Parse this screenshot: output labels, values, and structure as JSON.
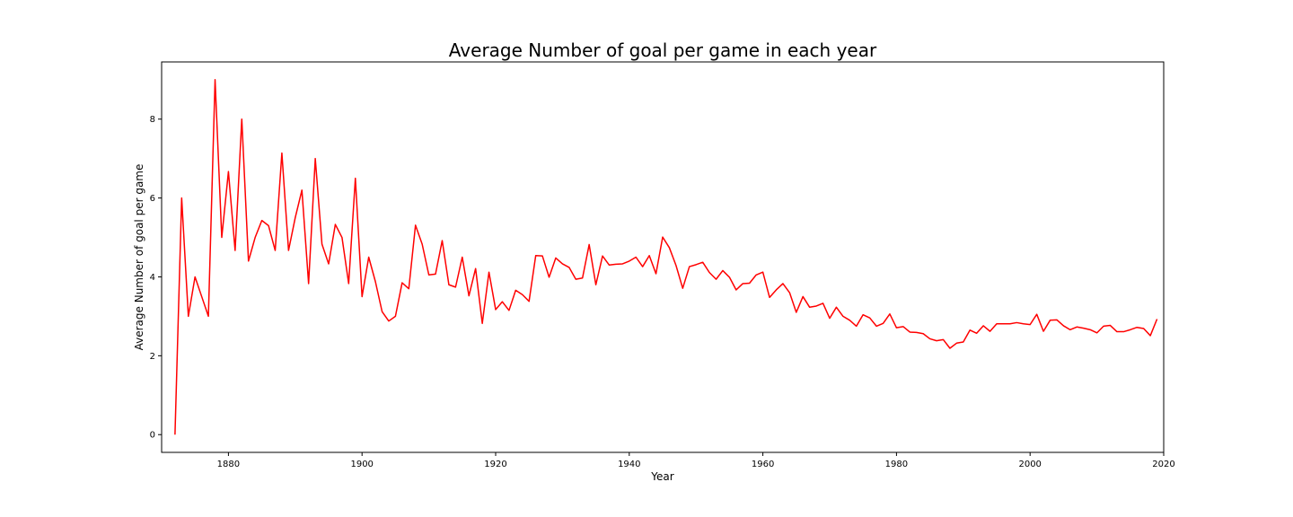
{
  "chart_data": {
    "type": "line",
    "title": "Average Number of goal per game  in each year",
    "xlabel": "Year",
    "ylabel": "Average Number of goal per game",
    "xlim": [
      1870,
      2020
    ],
    "ylim": [
      -0.45,
      9.45
    ],
    "x_ticks": [
      1880,
      1900,
      1920,
      1940,
      1960,
      1980,
      2000,
      2020
    ],
    "y_ticks": [
      0,
      2,
      4,
      6,
      8
    ],
    "grid": false,
    "legend": "none",
    "line_color": "#ff0000",
    "series": [
      {
        "x": [
          1872,
          1873,
          1874,
          1875,
          1876,
          1877,
          1878,
          1879,
          1880,
          1881,
          1882,
          1883,
          1884,
          1885,
          1886,
          1887,
          1888,
          1889,
          1890,
          1891,
          1892,
          1893,
          1894,
          1895,
          1896,
          1897,
          1898,
          1899,
          1900,
          1901,
          1902,
          1903,
          1904,
          1905,
          1906,
          1907,
          1908,
          1909,
          1910,
          1911,
          1912,
          1913,
          1914,
          1915,
          1916,
          1917,
          1918,
          1919,
          1920,
          1921,
          1922,
          1923,
          1924,
          1925,
          1926,
          1927,
          1928,
          1929,
          1930,
          1931,
          1932,
          1933,
          1934,
          1935,
          1936,
          1937,
          1938,
          1939,
          1940,
          1941,
          1942,
          1943,
          1944,
          1945,
          1946,
          1947,
          1948,
          1949,
          1950,
          1951,
          1952,
          1953,
          1954,
          1955,
          1956,
          1957,
          1958,
          1959,
          1960,
          1961,
          1962,
          1963,
          1964,
          1965,
          1966,
          1967,
          1968,
          1969,
          1970,
          1971,
          1972,
          1973,
          1974,
          1975,
          1976,
          1977,
          1978,
          1979,
          1980,
          1981,
          1982,
          1983,
          1984,
          1985,
          1986,
          1987,
          1988,
          1989,
          1990,
          1991,
          1992,
          1993,
          1994,
          1995,
          1996,
          1997,
          1998,
          1999,
          2000,
          2001,
          2002,
          2003,
          2004,
          2005,
          2006,
          2007,
          2008,
          2009,
          2010,
          2011,
          2012,
          2013,
          2014,
          2015,
          2016,
          2017,
          2018,
          2019
        ],
        "y": [
          0.0,
          6.0,
          3.0,
          4.0,
          3.5,
          3.0,
          9.0,
          5.0,
          6.67,
          4.67,
          8.0,
          4.4,
          5.0,
          5.43,
          5.3,
          4.67,
          7.14,
          4.67,
          5.5,
          6.2,
          3.83,
          7.0,
          4.83,
          4.33,
          5.33,
          5.0,
          3.83,
          6.5,
          3.5,
          4.5,
          3.88,
          3.12,
          2.88,
          3.0,
          3.85,
          3.7,
          5.31,
          4.83,
          4.05,
          4.07,
          4.92,
          3.8,
          3.74,
          4.5,
          3.52,
          4.21,
          2.82,
          4.12,
          3.17,
          3.37,
          3.15,
          3.66,
          3.55,
          3.38,
          4.54,
          4.53,
          3.99,
          4.48,
          4.33,
          4.24,
          3.94,
          3.97,
          4.82,
          3.8,
          4.53,
          4.3,
          4.32,
          4.33,
          4.4,
          4.5,
          4.26,
          4.54,
          4.08,
          5.01,
          4.74,
          4.29,
          3.71,
          4.26,
          4.31,
          4.37,
          4.11,
          3.94,
          4.16,
          3.99,
          3.67,
          3.83,
          3.84,
          4.05,
          4.12,
          3.48,
          3.67,
          3.83,
          3.6,
          3.1,
          3.5,
          3.23,
          3.26,
          3.33,
          2.95,
          3.23,
          3.0,
          2.9,
          2.75,
          3.04,
          2.96,
          2.75,
          2.82,
          3.06,
          2.71,
          2.74,
          2.6,
          2.59,
          2.56,
          2.43,
          2.38,
          2.41,
          2.19,
          2.32,
          2.35,
          2.65,
          2.57,
          2.76,
          2.62,
          2.81,
          2.81,
          2.81,
          2.84,
          2.81,
          2.79,
          3.05,
          2.62,
          2.9,
          2.91,
          2.76,
          2.66,
          2.73,
          2.7,
          2.66,
          2.58,
          2.75,
          2.77,
          2.61,
          2.61,
          2.66,
          2.72,
          2.69,
          2.51,
          2.93
        ]
      }
    ]
  }
}
